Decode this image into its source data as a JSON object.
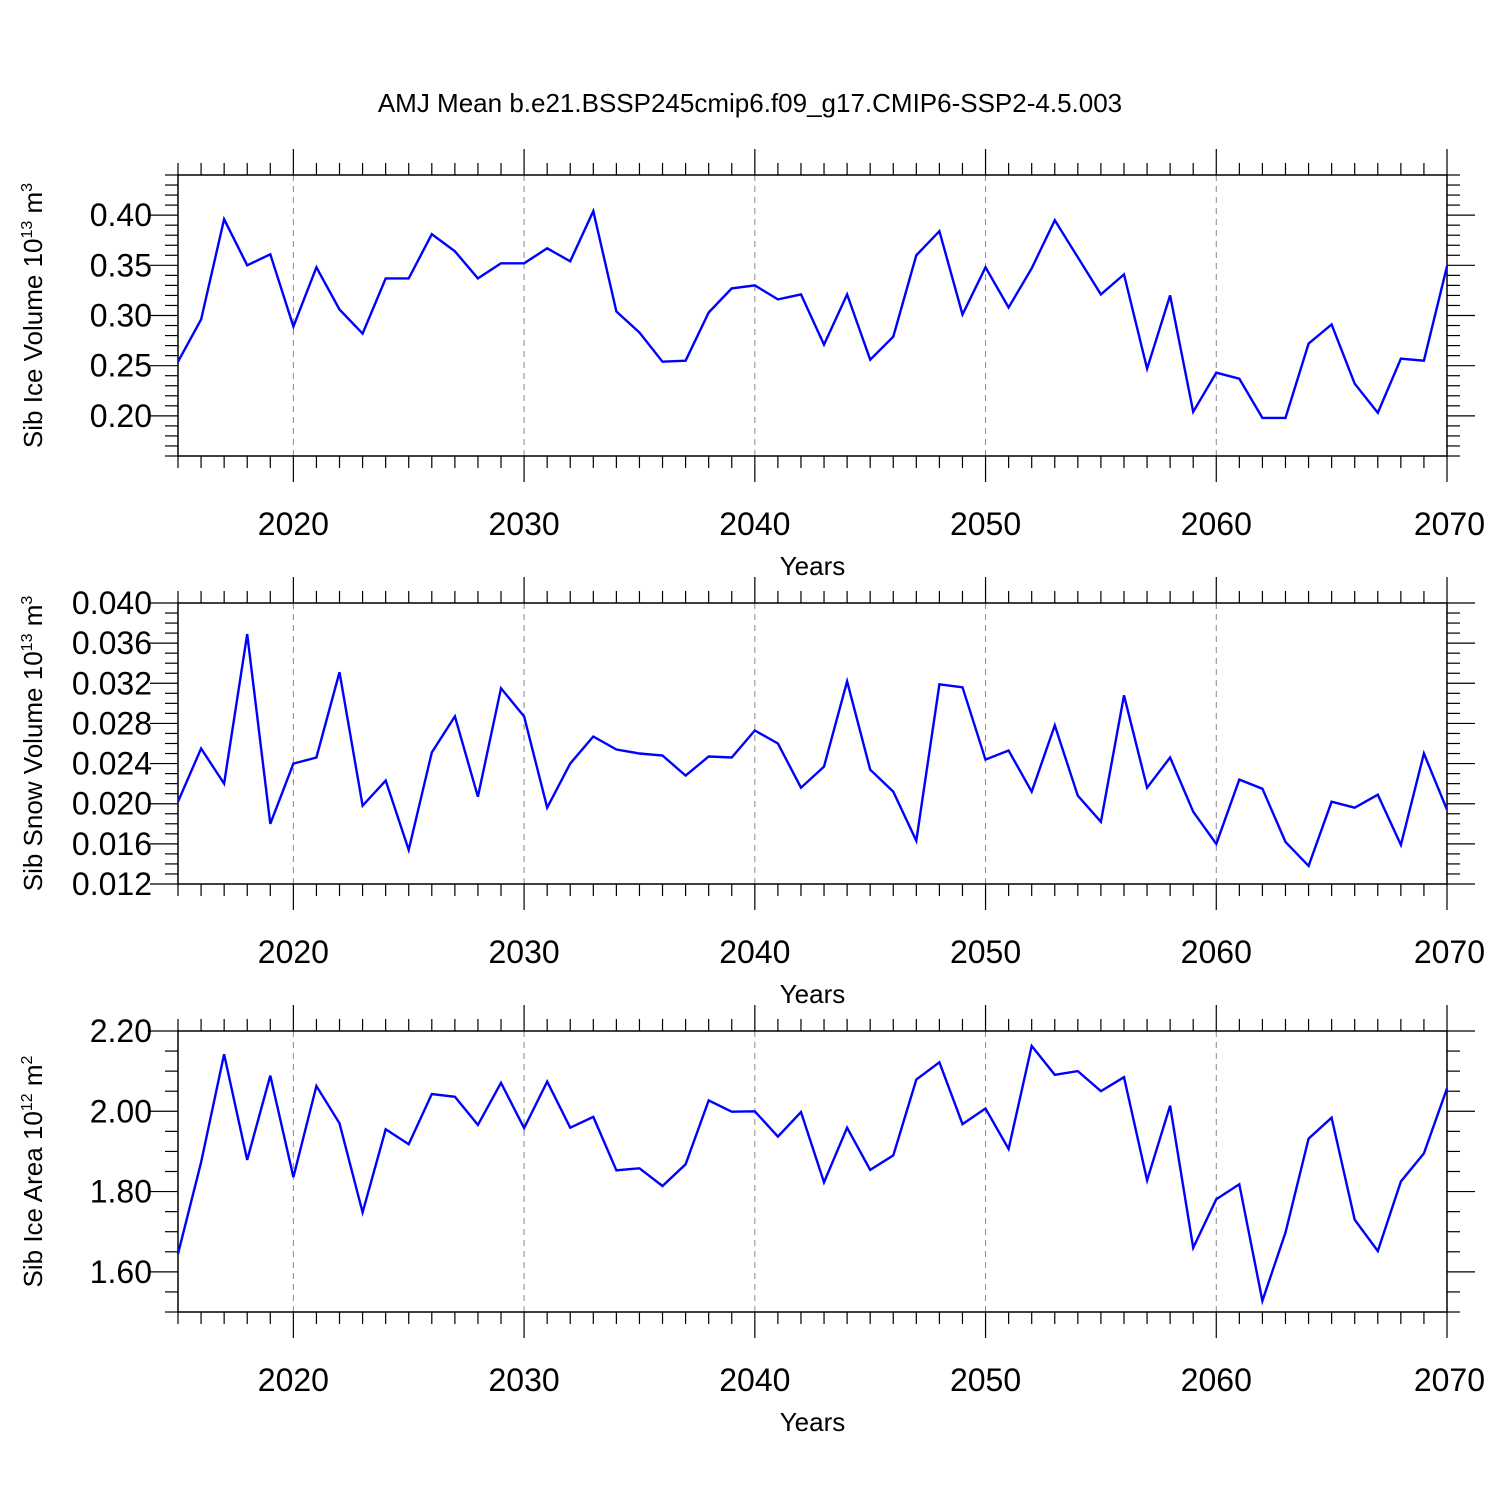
{
  "figure": {
    "title": "AMJ Mean b.e21.BSSP245cmip6.f09_g17.CMIP6-SSP2-4.5.003",
    "line_color": "#0000ff"
  },
  "chart_data": [
    {
      "type": "line",
      "ylabel": "Sib Ice Volume 10",
      "ylabel_exp": "13",
      "ylabel_unit": " m",
      "ylabel_unit_exp": "3",
      "xlabel": "Years",
      "xlim": [
        2015,
        2070
      ],
      "ylim": [
        0.16,
        0.44
      ],
      "yticks": [
        0.2,
        0.25,
        0.3,
        0.35,
        0.4
      ],
      "ytick_labels": [
        "0.20",
        "0.25",
        "0.30",
        "0.35",
        "0.40"
      ],
      "ytick_minor_step": 0.01,
      "xticks": [
        2020,
        2030,
        2040,
        2050,
        2060,
        2070
      ],
      "xtick_labels": [
        "2020",
        "2030",
        "2040",
        "2050",
        "2060",
        "2070"
      ],
      "x_start": 2015,
      "values": [
        0.254,
        0.296,
        0.396,
        0.35,
        0.361,
        0.289,
        0.348,
        0.306,
        0.282,
        0.337,
        0.337,
        0.381,
        0.364,
        0.337,
        0.352,
        0.352,
        0.367,
        0.354,
        0.404,
        0.304,
        0.283,
        0.254,
        0.255,
        0.303,
        0.327,
        0.33,
        0.316,
        0.321,
        0.271,
        0.321,
        0.256,
        0.279,
        0.36,
        0.384,
        0.301,
        0.348,
        0.308,
        0.347,
        0.395,
        0.358,
        0.321,
        0.341,
        0.247,
        0.32,
        0.204,
        0.243,
        0.237,
        0.198,
        0.198,
        0.272,
        0.291,
        0.232,
        0.203,
        0.257,
        0.255,
        0.349
      ]
    },
    {
      "type": "line",
      "ylabel": "Sib Snow Volume 10",
      "ylabel_exp": "13",
      "ylabel_unit": " m",
      "ylabel_unit_exp": "3",
      "xlabel": "Years",
      "xlim": [
        2015,
        2070
      ],
      "ylim": [
        0.012,
        0.04
      ],
      "yticks": [
        0.012,
        0.016,
        0.02,
        0.024,
        0.028,
        0.032,
        0.036,
        0.04
      ],
      "ytick_labels": [
        "0.012",
        "0.016",
        "0.020",
        "0.024",
        "0.028",
        "0.032",
        "0.036",
        "0.040"
      ],
      "ytick_minor_step": 0.001,
      "xticks": [
        2020,
        2030,
        2040,
        2050,
        2060,
        2070
      ],
      "xtick_labels": [
        "2020",
        "2030",
        "2040",
        "2050",
        "2060",
        "2070"
      ],
      "x_start": 2015,
      "values": [
        0.0202,
        0.0255,
        0.022,
        0.0369,
        0.018,
        0.024,
        0.0246,
        0.0331,
        0.0198,
        0.0223,
        0.0154,
        0.0251,
        0.0287,
        0.0207,
        0.0315,
        0.0287,
        0.0196,
        0.024,
        0.0267,
        0.0254,
        0.025,
        0.0248,
        0.0228,
        0.0247,
        0.0246,
        0.0273,
        0.026,
        0.0216,
        0.0237,
        0.0322,
        0.0234,
        0.0212,
        0.0163,
        0.0319,
        0.0316,
        0.0244,
        0.0253,
        0.0212,
        0.0278,
        0.0208,
        0.0182,
        0.0308,
        0.0216,
        0.0246,
        0.0192,
        0.016,
        0.0224,
        0.0215,
        0.0162,
        0.0138,
        0.0202,
        0.0196,
        0.0209,
        0.0159,
        0.025,
        0.0194
      ]
    },
    {
      "type": "line",
      "ylabel": "Sib Ice Area 10",
      "ylabel_exp": "12",
      "ylabel_unit": " m",
      "ylabel_unit_exp": "2",
      "xlabel": "Years",
      "xlim": [
        2015,
        2070
      ],
      "ylim": [
        1.5,
        2.2
      ],
      "yticks": [
        1.6,
        1.8,
        2.0,
        2.2
      ],
      "ytick_labels": [
        "1.60",
        "1.80",
        "2.00",
        "2.20"
      ],
      "ytick_minor_step": 0.05,
      "xticks": [
        2020,
        2030,
        2040,
        2050,
        2060,
        2070
      ],
      "xtick_labels": [
        "2020",
        "2030",
        "2040",
        "2050",
        "2060",
        "2070"
      ],
      "x_start": 2015,
      "values": [
        1.645,
        1.873,
        2.142,
        1.879,
        2.089,
        1.836,
        2.063,
        1.97,
        1.748,
        1.955,
        1.918,
        2.043,
        2.036,
        1.966,
        2.071,
        1.958,
        2.074,
        1.959,
        1.986,
        1.853,
        1.858,
        1.814,
        1.868,
        2.027,
        1.999,
        2.0,
        1.937,
        1.998,
        1.823,
        1.959,
        1.854,
        1.89,
        2.079,
        2.122,
        1.968,
        2.007,
        1.906,
        2.163,
        2.091,
        2.1,
        2.05,
        2.085,
        1.828,
        2.014,
        1.66,
        1.781,
        1.818,
        1.528,
        1.698,
        1.932,
        1.984,
        1.73,
        1.652,
        1.825,
        1.895,
        2.057
      ]
    }
  ]
}
